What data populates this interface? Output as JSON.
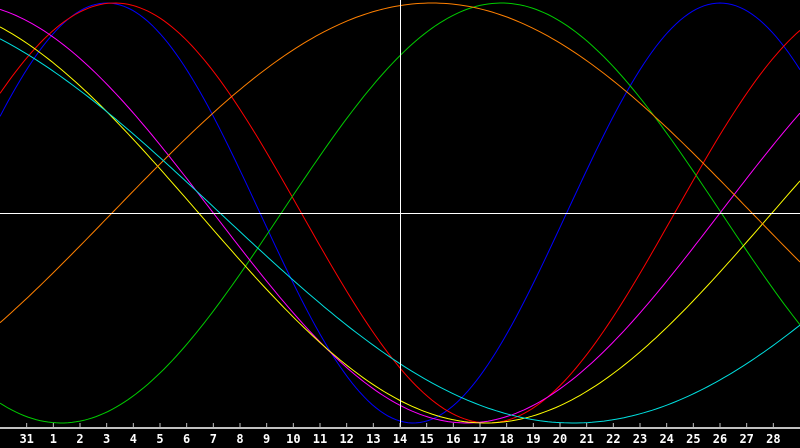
{
  "chart_data": {
    "type": "line",
    "title": "",
    "xlabel": "",
    "ylabel": "",
    "ylim": [
      -1,
      1
    ],
    "grid": false,
    "categories": [
      "31",
      "1",
      "2",
      "3",
      "4",
      "5",
      "6",
      "7",
      "8",
      "9",
      "10",
      "11",
      "12",
      "13",
      "14",
      "15",
      "16",
      "17",
      "18",
      "19",
      "20",
      "21",
      "22",
      "23",
      "24",
      "25",
      "26",
      "27",
      "28"
    ],
    "cursor_category": "14",
    "zero_line": 0,
    "series": [
      {
        "color": "#0000ff",
        "period_days": 23,
        "peak_category": "3"
      },
      {
        "color": "#ff0000",
        "period_days": 28,
        "peak_category": "3"
      },
      {
        "color": "#00cc00",
        "period_days": 33,
        "peak_category": "17"
      },
      {
        "color": "#ff00ff",
        "period_days": 38,
        "peak_category": "29 (prev.)"
      },
      {
        "color": "#ffff00",
        "period_days": 43,
        "peak_category": "26 (prev.)"
      },
      {
        "color": "#ff8000",
        "period_days": 48,
        "peak_category": "14"
      },
      {
        "color": "#00e0e0",
        "period_days": 53,
        "peak_category": "20 (prev.)"
      }
    ]
  },
  "colors": {
    "background": "#000000",
    "axis": "#c0c0c0",
    "cursor": "#ffffff",
    "labels": "#ffffff"
  }
}
